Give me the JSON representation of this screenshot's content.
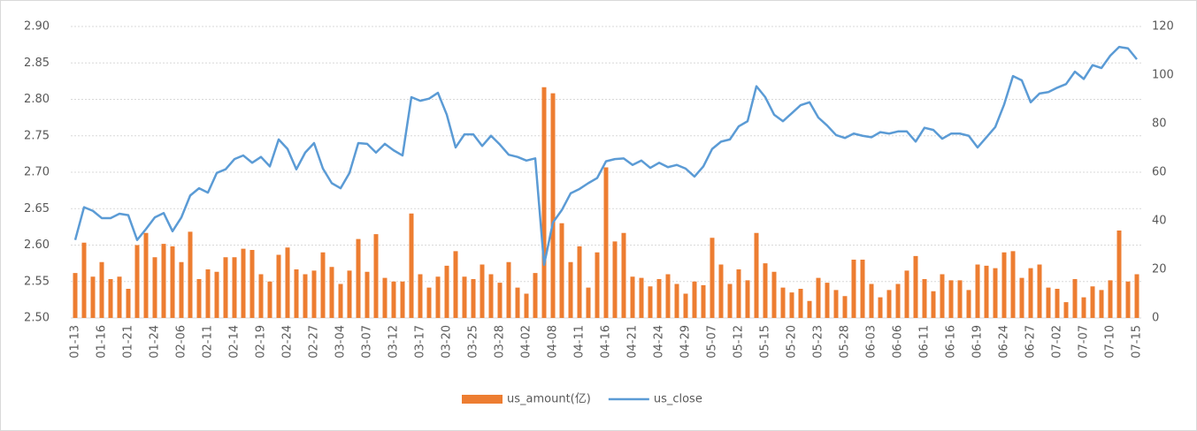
{
  "chart_data": {
    "type": "bar-line",
    "categories": [
      "01-13",
      null,
      null,
      "01-16",
      null,
      null,
      "01-21",
      null,
      null,
      "01-24",
      null,
      null,
      "02-06",
      null,
      null,
      "02-11",
      null,
      null,
      "02-14",
      null,
      null,
      "02-19",
      null,
      null,
      "02-24",
      null,
      null,
      "02-27",
      null,
      null,
      "03-04",
      null,
      null,
      "03-07",
      null,
      null,
      "03-12",
      null,
      null,
      "03-17",
      null,
      null,
      "03-20",
      null,
      null,
      "03-25",
      null,
      null,
      "03-28",
      null,
      null,
      "04-02",
      null,
      null,
      "04-08",
      null,
      null,
      "04-11",
      null,
      null,
      "04-16",
      null,
      null,
      "04-21",
      null,
      null,
      "04-24",
      null,
      null,
      "04-29",
      null,
      null,
      "05-07",
      null,
      null,
      "05-12",
      null,
      null,
      "05-15",
      null,
      null,
      "05-20",
      null,
      null,
      "05-23",
      null,
      null,
      "05-28",
      null,
      null,
      "06-03",
      null,
      null,
      "06-06",
      null,
      null,
      "06-11",
      null,
      null,
      "06-16",
      null,
      null,
      "06-19",
      null,
      null,
      "06-24",
      null,
      null,
      "06-27",
      null,
      null,
      "07-02",
      null,
      null,
      "07-07",
      null,
      null,
      "07-10",
      null,
      null,
      "07-15"
    ],
    "series": [
      {
        "name": "us_amount(亿)",
        "type": "bar",
        "axis": "y2",
        "color": "#ED7D31",
        "values": [
          18.5,
          31,
          17,
          23,
          16,
          17,
          12,
          30,
          35,
          25,
          30.5,
          29.5,
          23,
          35.5,
          16,
          20,
          19,
          25,
          25,
          28.5,
          28,
          18,
          15,
          26,
          29,
          20,
          18,
          19.5,
          27,
          21,
          14,
          19.5,
          32.5,
          19,
          34.5,
          16.5,
          15,
          15,
          43,
          18,
          12.5,
          17,
          21.5,
          27.5,
          17,
          16,
          22,
          18,
          14.5,
          23,
          12.5,
          10,
          18.5,
          95,
          92.5,
          39,
          23,
          29.5,
          12.5,
          27,
          62,
          31.5,
          35,
          17,
          16.5,
          13,
          16,
          18,
          14,
          10,
          15,
          13.5,
          33,
          22,
          14,
          20,
          15.5,
          35,
          22.5,
          19,
          12.5,
          10.5,
          12,
          7,
          16.5,
          14.5,
          11.5,
          9,
          24,
          24,
          14,
          8.5,
          11.5,
          14,
          19.5,
          25.5,
          16,
          11,
          18,
          15.5,
          15.5,
          11.5,
          22,
          21.5,
          20.5,
          27,
          27.5,
          16.5,
          20.5,
          22,
          12.5,
          12,
          6.5,
          16,
          8.5,
          13,
          11.5,
          15.5,
          36,
          15,
          18
        ]
      },
      {
        "name": "us_close",
        "type": "line",
        "color": "#5B9BD5",
        "values": [
          2.607,
          2.652,
          2.647,
          2.637,
          2.637,
          2.643,
          2.641,
          2.607,
          2.622,
          2.638,
          2.644,
          2.619,
          2.638,
          2.668,
          2.678,
          2.672,
          2.699,
          2.704,
          2.718,
          2.723,
          2.713,
          2.721,
          2.708,
          2.745,
          2.732,
          2.704,
          2.727,
          2.74,
          2.705,
          2.685,
          2.678,
          2.699,
          2.74,
          2.739,
          2.727,
          2.739,
          2.73,
          2.723,
          2.803,
          2.798,
          2.801,
          2.809,
          2.779,
          2.734,
          2.752,
          2.752,
          2.736,
          2.75,
          2.738,
          2.724,
          2.721,
          2.716,
          2.719,
          2.573,
          2.631,
          2.648,
          2.671,
          2.677,
          2.685,
          2.692,
          2.715,
          2.718,
          2.719,
          2.71,
          2.716,
          2.706,
          2.713,
          2.707,
          2.71,
          2.705,
          2.694,
          2.708,
          2.732,
          2.742,
          2.745,
          2.763,
          2.77,
          2.818,
          2.803,
          2.779,
          2.77,
          2.781,
          2.792,
          2.796,
          2.775,
          2.764,
          2.751,
          2.747,
          2.753,
          2.75,
          2.748,
          2.755,
          2.753,
          2.756,
          2.756,
          2.742,
          2.761,
          2.758,
          2.746,
          2.753,
          2.753,
          2.75,
          2.734,
          2.748,
          2.762,
          2.793,
          2.832,
          2.826,
          2.796,
          2.808,
          2.81,
          2.816,
          2.821,
          2.838,
          2.828,
          2.847,
          2.843,
          2.86,
          2.872,
          2.87,
          2.855
        ]
      }
    ],
    "ylim": [
      2.5,
      2.9
    ],
    "yticks": [
      {
        "value": 2.5,
        "label": "2.50"
      },
      {
        "value": 2.55,
        "label": "2.55"
      },
      {
        "value": 2.6,
        "label": "2.60"
      },
      {
        "value": 2.65,
        "label": "2.65"
      },
      {
        "value": 2.7,
        "label": "2.70"
      },
      {
        "value": 2.75,
        "label": "2.75"
      },
      {
        "value": 2.8,
        "label": "2.80"
      },
      {
        "value": 2.85,
        "label": "2.85"
      },
      {
        "value": 2.9,
        "label": "2.90"
      }
    ],
    "y2lim": [
      0,
      120
    ],
    "y2ticks": [
      0,
      20,
      40,
      60,
      80,
      100,
      120
    ],
    "grid": true,
    "legend": "bottom"
  }
}
